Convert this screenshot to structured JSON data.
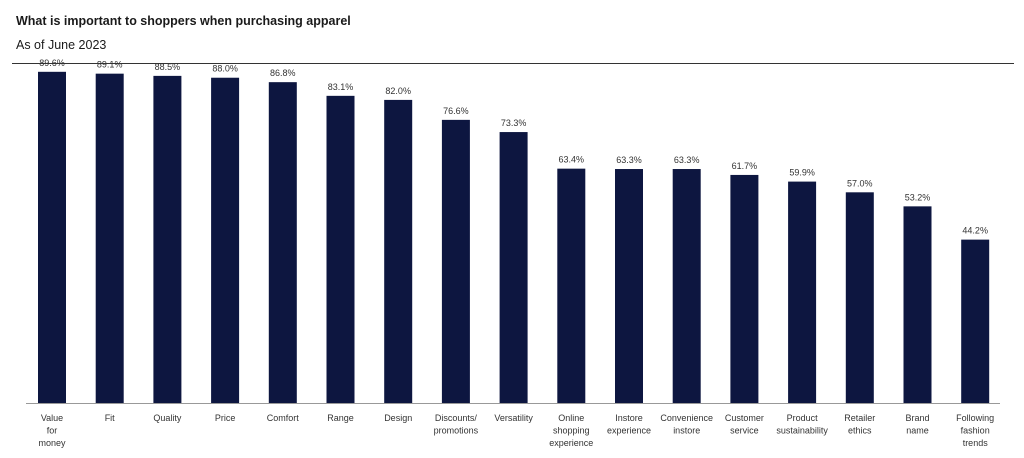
{
  "header": {
    "title": "What is important to shoppers when purchasing apparel",
    "subtitle": "As of June 2023"
  },
  "colors": {
    "bar": "#0d1640",
    "axis": "#999999"
  },
  "chart_data": {
    "type": "bar",
    "title": "What is important to shoppers when purchasing apparel",
    "subtitle": "As of June 2023",
    "xlabel": "",
    "ylabel": "",
    "ylim": [
      0,
      100
    ],
    "unit": "%",
    "categories": [
      [
        "Value",
        "for",
        "money"
      ],
      [
        "Fit"
      ],
      [
        "Quality"
      ],
      [
        "Price"
      ],
      [
        "Comfort"
      ],
      [
        "Range"
      ],
      [
        "Design"
      ],
      [
        "Discounts/",
        "promotions"
      ],
      [
        "Versatility"
      ],
      [
        "Online",
        "shopping",
        "experience"
      ],
      [
        "Instore",
        "experience"
      ],
      [
        "Convenience",
        "instore"
      ],
      [
        "Customer",
        "service"
      ],
      [
        "Product",
        "sustainability"
      ],
      [
        "Retailer",
        "ethics"
      ],
      [
        "Brand",
        "name"
      ],
      [
        "Following",
        "fashion",
        "trends"
      ]
    ],
    "values": [
      89.6,
      89.1,
      88.5,
      88.0,
      86.8,
      83.1,
      82.0,
      76.6,
      73.3,
      63.4,
      63.3,
      63.3,
      61.7,
      59.9,
      57.0,
      53.2,
      44.2
    ],
    "value_labels": [
      "89.6%",
      "89.1%",
      "88.5%",
      "88.0%",
      "86.8%",
      "83.1%",
      "82.0%",
      "76.6%",
      "73.3%",
      "63.4%",
      "63.3%",
      "63.3%",
      "61.7%",
      "59.9%",
      "57.0%",
      "53.2%",
      "44.2%"
    ],
    "grid": false,
    "legend": "none"
  }
}
